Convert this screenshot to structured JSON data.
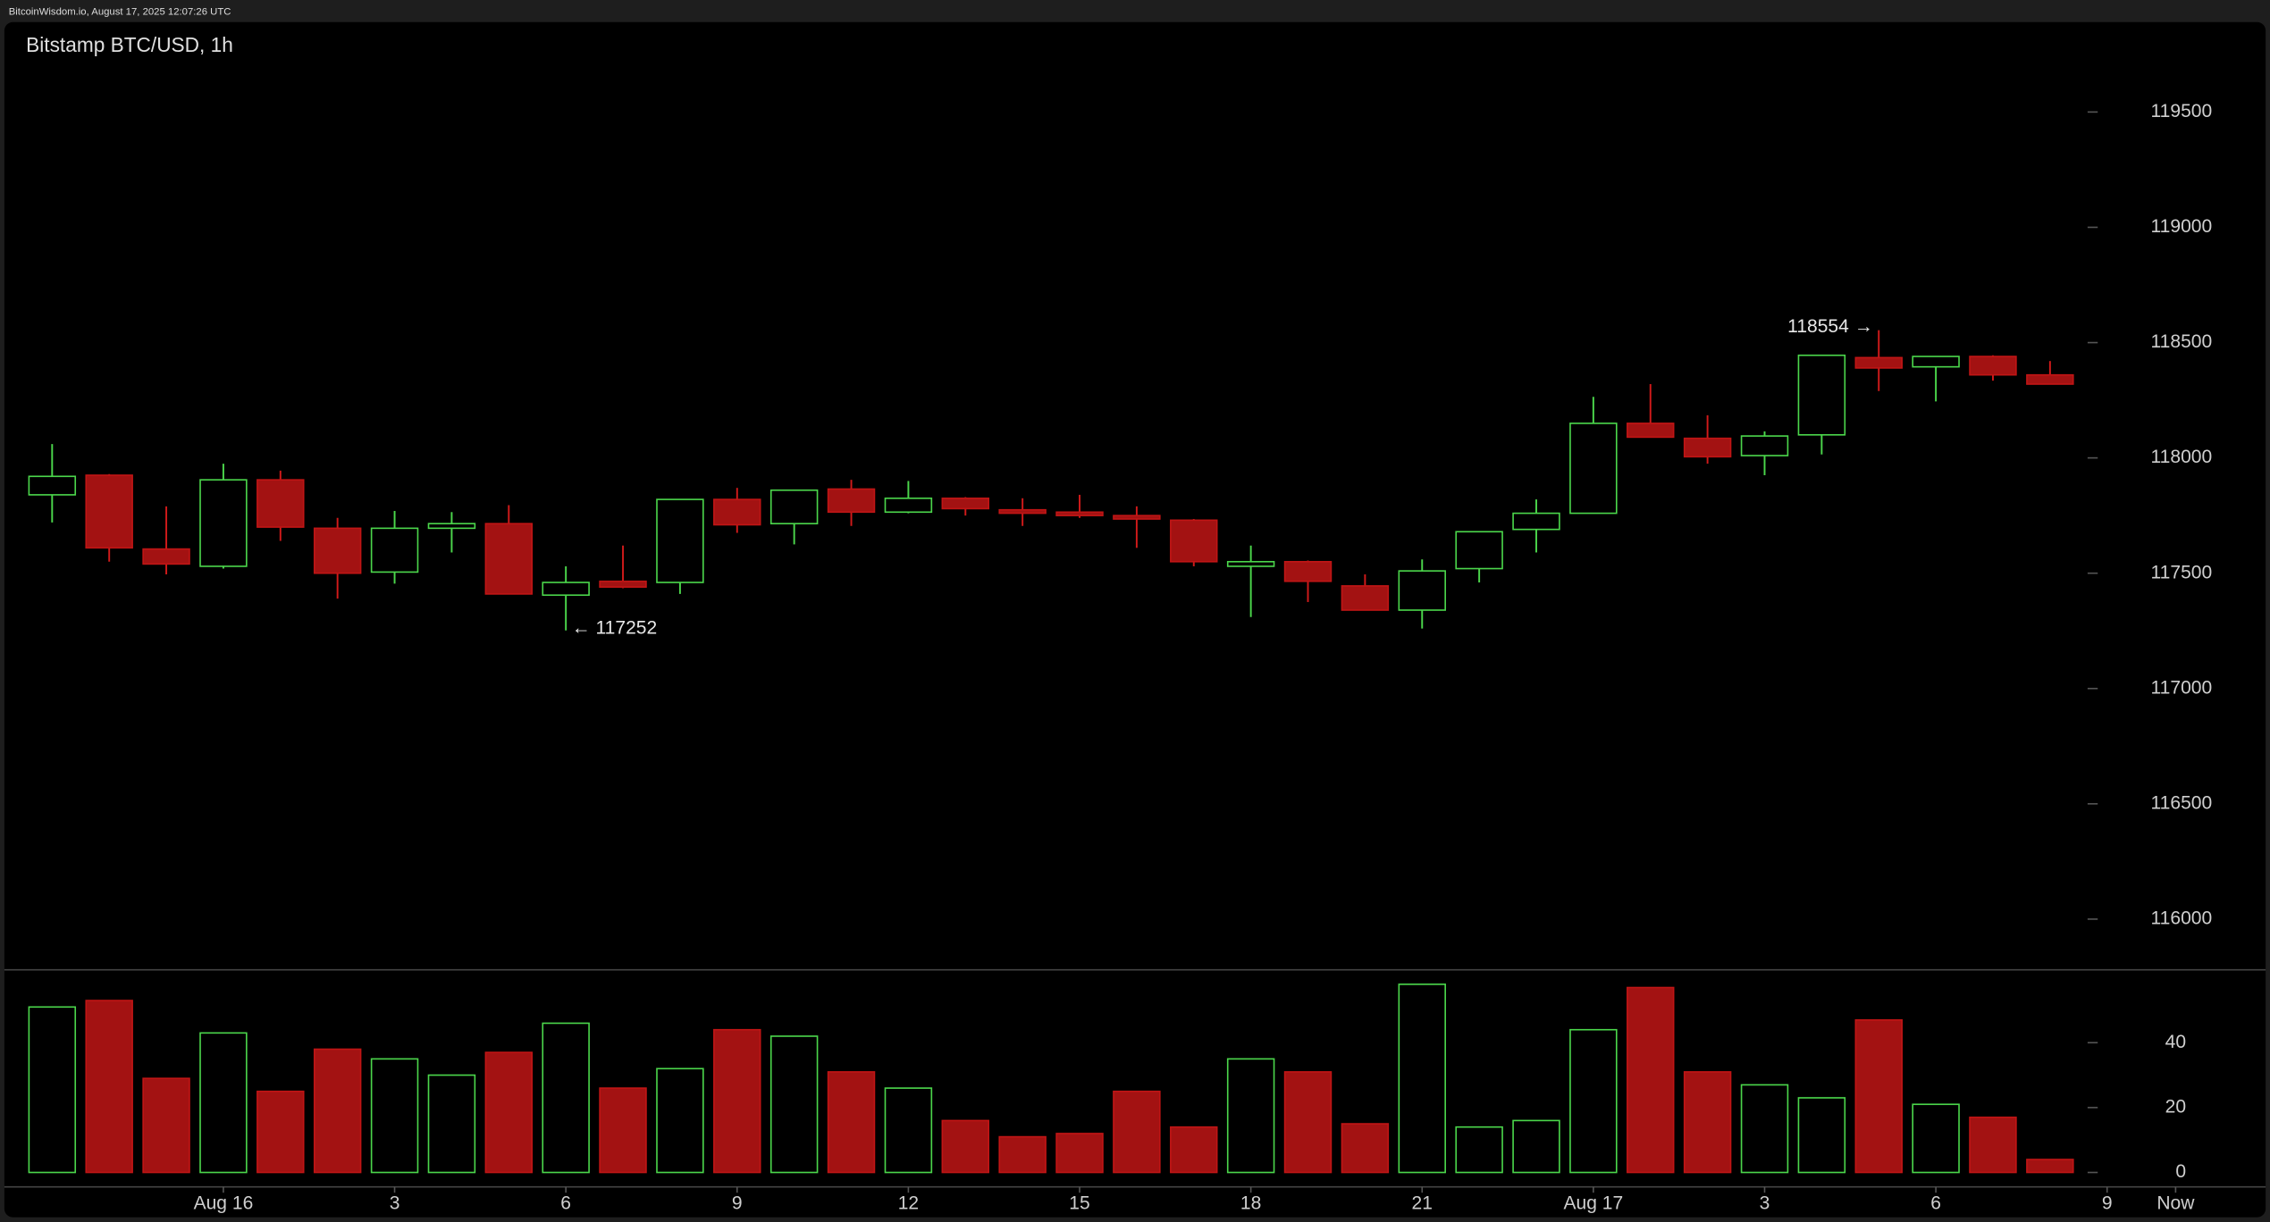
{
  "header": "BitcoinWisdom.io, August 17, 2025 12:07:26 UTC",
  "chart_data": [
    {
      "type": "candlestick",
      "title": "Bitstamp BTC/USD, 1h",
      "up_color": "#4bd64b",
      "down_color": "#a31212",
      "open": [
        117840,
        117925,
        117605,
        117530,
        117905,
        117695,
        117505,
        117695,
        117715,
        117405,
        117465,
        117460,
        117820,
        117715,
        117865,
        117765,
        117825,
        117775,
        117765,
        117750,
        117730,
        117530,
        117550,
        117445,
        117340,
        117520,
        117690,
        117760,
        118150,
        118085,
        118010,
        118100,
        118435,
        118395,
        118440,
        118360
      ],
      "high": [
        118060,
        117930,
        117790,
        117975,
        117945,
        117740,
        117770,
        117765,
        117795,
        117530,
        117620,
        117820,
        117870,
        117860,
        117905,
        117900,
        117830,
        117825,
        117840,
        117790,
        117735,
        117620,
        117555,
        117495,
        117560,
        117680,
        117820,
        118265,
        118320,
        118185,
        118115,
        118445,
        118554,
        118440,
        118445,
        118420
      ],
      "low": [
        117720,
        117550,
        117495,
        117520,
        117640,
        117390,
        117455,
        117590,
        117410,
        117252,
        117435,
        117410,
        117675,
        117625,
        117705,
        117760,
        117750,
        117705,
        117740,
        117610,
        117530,
        117310,
        117375,
        117340,
        117260,
        117460,
        117590,
        117760,
        118090,
        117975,
        117925,
        118015,
        118290,
        118245,
        118335,
        118320
      ],
      "close": [
        117920,
        117610,
        117540,
        117905,
        117700,
        117500,
        117695,
        117715,
        117410,
        117460,
        117440,
        117820,
        117710,
        117860,
        117765,
        117825,
        117780,
        117760,
        117750,
        117735,
        117550,
        117550,
        117465,
        117340,
        117510,
        117680,
        117760,
        118150,
        118090,
        118005,
        118095,
        118445,
        118390,
        118440,
        118360,
        118320
      ],
      "ylim": [
        115780,
        119890
      ],
      "yticks": [
        116000,
        116500,
        117000,
        117500,
        118000,
        118500,
        119000,
        119500
      ],
      "annotations": [
        "← 117252",
        "118554 →"
      ]
    },
    {
      "type": "bar",
      "values": [
        51,
        53,
        29,
        43,
        25,
        38,
        35,
        30,
        37,
        46,
        26,
        32,
        44,
        42,
        31,
        26,
        16,
        11,
        12,
        25,
        14,
        35,
        31,
        15,
        58,
        14,
        16,
        44,
        57,
        31,
        27,
        23,
        47,
        21,
        17,
        4
      ],
      "ylim": [
        0,
        62
      ],
      "yticks": [
        0,
        20,
        40
      ],
      "xticks": [
        {
          "value": 3,
          "label": "Aug 16"
        },
        {
          "value": 6,
          "label": "3"
        },
        {
          "value": 9,
          "label": "6"
        },
        {
          "value": 12,
          "label": "9"
        },
        {
          "value": 15,
          "label": "12"
        },
        {
          "value": 18,
          "label": "15"
        },
        {
          "value": 21,
          "label": "18"
        },
        {
          "value": 24,
          "label": "21"
        },
        {
          "value": 27,
          "label": "Aug 17"
        },
        {
          "value": 30,
          "label": "3"
        },
        {
          "value": 33,
          "label": "6"
        },
        {
          "value": 36,
          "label": "9"
        },
        {
          "value": 37.2,
          "label": "Now"
        }
      ]
    }
  ]
}
